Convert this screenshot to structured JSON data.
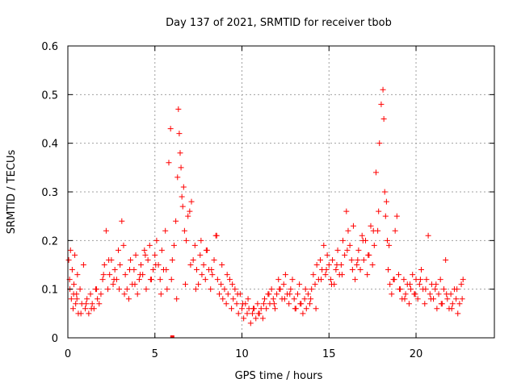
{
  "chart_data": {
    "type": "scatter",
    "title": "Day 137 of 2021, SRMTID for receiver tbob",
    "xlabel": "GPS time / hours",
    "ylabel": "SRMTID / TECUs",
    "xlim": [
      0,
      24.5
    ],
    "ylim": [
      0,
      0.6
    ],
    "xticks": [
      0,
      5,
      10,
      15,
      20
    ],
    "xtick_labels": [
      "0",
      "5",
      "10",
      "15",
      "20"
    ],
    "yticks": [
      0,
      0.1,
      0.2,
      0.3,
      0.4,
      0.5,
      0.6
    ],
    "ytick_labels": [
      "0",
      "0.1",
      "0.2",
      "0.3",
      "0.4",
      "0.5",
      "0.6"
    ],
    "grid": true,
    "marker": "+",
    "color": "#ff0000",
    "series": [
      {
        "name": "SRMTID",
        "x": [
          0.05,
          0.1,
          0.15,
          0.2,
          0.25,
          0.3,
          0.35,
          0.4,
          0.45,
          0.5,
          0.55,
          0.6,
          0.7,
          0.8,
          0.9,
          1.0,
          1.1,
          1.2,
          1.3,
          1.4,
          1.5,
          1.6,
          1.7,
          1.8,
          1.9,
          2.0,
          2.1,
          2.2,
          2.3,
          2.4,
          2.5,
          2.6,
          2.7,
          2.8,
          2.9,
          3.0,
          3.1,
          3.2,
          3.3,
          3.4,
          3.5,
          3.6,
          3.7,
          3.8,
          3.9,
          4.0,
          4.1,
          4.2,
          4.3,
          4.4,
          4.5,
          4.6,
          4.7,
          4.8,
          4.9,
          5.0,
          5.1,
          5.2,
          5.3,
          5.4,
          5.5,
          5.6,
          5.7,
          5.8,
          5.9,
          6.0,
          6.1,
          6.2,
          6.3,
          6.35,
          6.4,
          6.45,
          6.5,
          6.55,
          6.6,
          6.65,
          6.7,
          6.8,
          6.9,
          7.0,
          7.1,
          7.2,
          7.3,
          7.4,
          7.5,
          7.6,
          7.7,
          7.8,
          7.9,
          8.0,
          8.1,
          8.2,
          8.3,
          8.4,
          8.5,
          8.6,
          8.7,
          8.8,
          8.9,
          9.0,
          9.1,
          9.2,
          9.3,
          9.4,
          9.5,
          9.6,
          9.7,
          9.8,
          9.9,
          10.0,
          10.1,
          10.2,
          10.3,
          10.4,
          10.5,
          10.6,
          10.7,
          10.8,
          10.9,
          11.0,
          11.1,
          11.2,
          11.3,
          11.4,
          11.5,
          11.6,
          11.7,
          11.8,
          11.9,
          12.0,
          12.1,
          12.2,
          12.3,
          12.4,
          12.5,
          12.6,
          12.7,
          12.8,
          12.9,
          13.0,
          13.1,
          13.2,
          13.3,
          13.4,
          13.5,
          13.6,
          13.7,
          13.8,
          13.9,
          14.0,
          14.1,
          14.2,
          14.3,
          14.4,
          14.5,
          14.6,
          14.7,
          14.8,
          14.9,
          15.0,
          15.1,
          15.2,
          15.3,
          15.4,
          15.5,
          15.6,
          15.7,
          15.8,
          15.9,
          16.0,
          16.1,
          16.2,
          16.3,
          16.4,
          16.5,
          16.6,
          16.7,
          16.8,
          16.9,
          17.0,
          17.1,
          17.2,
          17.3,
          17.4,
          17.5,
          17.6,
          17.7,
          17.8,
          17.9,
          18.0,
          18.1,
          18.15,
          18.2,
          18.25,
          18.3,
          18.35,
          18.4,
          18.5,
          18.6,
          18.7,
          18.8,
          18.9,
          19.0,
          19.1,
          19.2,
          19.3,
          19.4,
          19.5,
          19.6,
          19.7,
          19.8,
          19.9,
          20.0,
          20.1,
          20.2,
          20.3,
          20.4,
          20.5,
          20.6,
          20.7,
          20.8,
          20.9,
          21.0,
          21.1,
          21.2,
          21.3,
          21.4,
          21.5,
          21.6,
          21.7,
          21.8,
          21.9,
          22.0,
          22.1,
          22.2,
          22.3,
          22.4,
          22.5,
          22.6,
          22.7,
          0.12,
          0.33,
          0.52,
          0.75,
          1.05,
          1.35,
          1.65,
          2.05,
          2.35,
          2.65,
          2.95,
          3.25,
          3.55,
          3.85,
          4.15,
          4.45,
          4.75,
          5.05,
          5.35,
          5.65,
          5.95,
          6.25,
          6.75,
          7.05,
          7.35,
          7.65,
          7.95,
          8.25,
          8.55,
          8.85,
          9.15,
          9.45,
          9.75,
          10.05,
          10.35,
          10.65,
          10.95,
          11.25,
          11.55,
          11.85,
          12.15,
          12.45,
          12.75,
          13.05,
          13.35,
          13.65,
          13.95,
          14.25,
          14.55,
          14.85,
          15.15,
          15.45,
          15.75,
          16.05,
          16.35,
          16.65,
          16.95,
          17.25,
          17.55,
          17.85,
          18.45,
          18.75,
          19.05,
          19.35,
          19.65,
          19.95,
          20.25,
          20.55,
          20.85,
          21.15,
          21.45,
          21.75,
          22.05,
          22.35,
          22.65,
          6.0
        ],
        "y": [
          0.16,
          0.12,
          0.18,
          0.08,
          0.14,
          0.06,
          0.11,
          0.17,
          0.07,
          0.09,
          0.13,
          0.05,
          0.1,
          0.07,
          0.15,
          0.06,
          0.08,
          0.05,
          0.09,
          0.07,
          0.06,
          0.1,
          0.08,
          0.07,
          0.09,
          0.12,
          0.15,
          0.22,
          0.1,
          0.13,
          0.16,
          0.11,
          0.14,
          0.12,
          0.18,
          0.15,
          0.24,
          0.19,
          0.13,
          0.1,
          0.08,
          0.16,
          0.11,
          0.14,
          0.17,
          0.09,
          0.12,
          0.15,
          0.13,
          0.18,
          0.1,
          0.16,
          0.19,
          0.12,
          0.14,
          0.17,
          0.2,
          0.15,
          0.12,
          0.18,
          0.14,
          0.22,
          0.1,
          0.36,
          0.43,
          0.16,
          0.19,
          0.24,
          0.33,
          0.47,
          0.42,
          0.38,
          0.35,
          0.29,
          0.27,
          0.31,
          0.22,
          0.2,
          0.25,
          0.26,
          0.28,
          0.16,
          0.19,
          0.14,
          0.11,
          0.17,
          0.13,
          0.15,
          0.12,
          0.18,
          0.14,
          0.1,
          0.13,
          0.16,
          0.21,
          0.12,
          0.09,
          0.11,
          0.08,
          0.1,
          0.07,
          0.09,
          0.12,
          0.06,
          0.08,
          0.1,
          0.07,
          0.05,
          0.09,
          0.06,
          0.04,
          0.07,
          0.05,
          0.06,
          0.03,
          0.05,
          0.06,
          0.04,
          0.07,
          0.05,
          0.06,
          0.04,
          0.08,
          0.06,
          0.09,
          0.07,
          0.1,
          0.08,
          0.06,
          0.09,
          0.12,
          0.1,
          0.08,
          0.11,
          0.13,
          0.09,
          0.07,
          0.1,
          0.12,
          0.08,
          0.06,
          0.09,
          0.11,
          0.07,
          0.05,
          0.08,
          0.06,
          0.09,
          0.07,
          0.1,
          0.13,
          0.11,
          0.15,
          0.12,
          0.16,
          0.14,
          0.19,
          0.13,
          0.17,
          0.15,
          0.12,
          0.16,
          0.11,
          0.14,
          0.18,
          0.13,
          0.15,
          0.2,
          0.17,
          0.26,
          0.22,
          0.19,
          0.16,
          0.23,
          0.12,
          0.15,
          0.18,
          0.14,
          0.21,
          0.16,
          0.2,
          0.13,
          0.17,
          0.23,
          0.15,
          0.19,
          0.34,
          0.22,
          0.4,
          0.48,
          0.51,
          0.45,
          0.3,
          0.25,
          0.28,
          0.2,
          0.14,
          0.11,
          0.09,
          0.12,
          0.22,
          0.25,
          0.13,
          0.1,
          0.08,
          0.12,
          0.09,
          0.11,
          0.07,
          0.1,
          0.13,
          0.09,
          0.12,
          0.08,
          0.11,
          0.14,
          0.1,
          0.07,
          0.12,
          0.21,
          0.09,
          0.11,
          0.08,
          0.1,
          0.06,
          0.09,
          0.12,
          0.07,
          0.1,
          0.16,
          0.08,
          0.06,
          0.09,
          0.07,
          0.1,
          0.08,
          0.05,
          0.07,
          0.11,
          0.12,
          0.1,
          0.09,
          0.08,
          0.05,
          0.07,
          0.06,
          0.1,
          0.13,
          0.16,
          0.12,
          0.1,
          0.09,
          0.14,
          0.11,
          0.13,
          0.17,
          0.12,
          0.15,
          0.09,
          0.14,
          0.12,
          0.08,
          0.11,
          0.15,
          0.1,
          0.2,
          0.18,
          0.14,
          0.21,
          0.15,
          0.13,
          0.11,
          0.09,
          0.07,
          0.08,
          0.06,
          0.05,
          0.07,
          0.09,
          0.07,
          0.1,
          0.08,
          0.09,
          0.06,
          0.07,
          0.1,
          0.08,
          0.06,
          0.12,
          0.14,
          0.11,
          0.15,
          0.13,
          0.18,
          0.14,
          0.16,
          0.2,
          0.17,
          0.22,
          0.26,
          0.19,
          0.12,
          0.1,
          0.08,
          0.11,
          0.09,
          0.12,
          0.1,
          0.08,
          0.11,
          0.07,
          0.09,
          0.06,
          0.1,
          0.08,
          0.0
        ]
      }
    ]
  }
}
